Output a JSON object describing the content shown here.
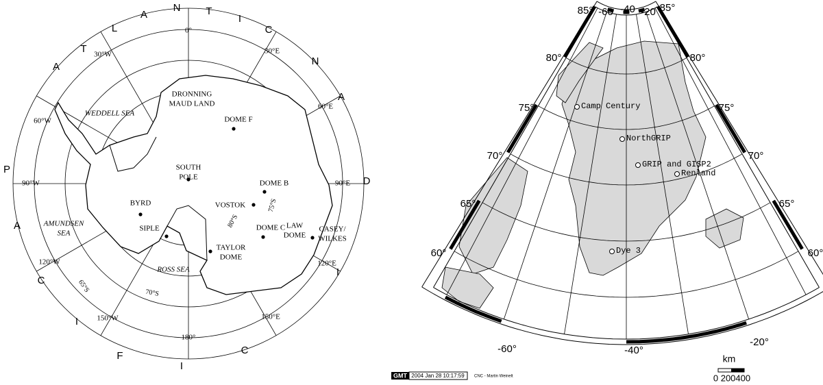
{
  "antarctica_map": {
    "meridian_labels": [
      "0°",
      "30°E",
      "60°E",
      "90°E",
      "120°E",
      "150°E",
      "180°",
      "150°W",
      "120°W",
      "90°W",
      "60°W",
      "30°W"
    ],
    "latitude_labels": [
      "80°S",
      "75°S",
      "70°S",
      "65°S"
    ],
    "ocean_letters": [
      "A",
      "T",
      "L",
      "A",
      "N",
      "T",
      "I",
      "C",
      "N",
      "A",
      "D",
      "I",
      "C",
      "I",
      "F",
      "I",
      "C",
      "A",
      "P"
    ],
    "seas": [
      {
        "lines": [
          "WEDDELL SEA"
        ]
      },
      {
        "lines": [
          "AMUNDSEN",
          "SEA"
        ]
      },
      {
        "lines": [
          "ROSS SEA"
        ]
      }
    ],
    "places": [
      {
        "lines": [
          "DRONNING",
          "MAUD LAND"
        ]
      },
      {
        "lines": [
          "DOME F"
        ]
      },
      {
        "lines": [
          "SOUTH",
          "POLE"
        ]
      },
      {
        "lines": [
          "DOME B"
        ]
      },
      {
        "lines": [
          "VOSTOK"
        ]
      },
      {
        "lines": [
          "BYRD"
        ]
      },
      {
        "lines": [
          "SIPLE"
        ]
      },
      {
        "lines": [
          "DOME C"
        ]
      },
      {
        "lines": [
          "LAW",
          "DOME"
        ]
      },
      {
        "lines": [
          "CASEY/",
          "WILKES"
        ]
      },
      {
        "lines": [
          "TAYLOR",
          "DOME"
        ]
      }
    ]
  },
  "greenland_map": {
    "top_labels": [
      "85°",
      "-60",
      "-40",
      "-20",
      "85°"
    ],
    "left_labels": [
      "80°",
      "75°",
      "70°",
      "65°",
      "60°"
    ],
    "right_labels": [
      "80°",
      "75°",
      "70°",
      "65°",
      "60°"
    ],
    "bottom_labels": [
      "-60°",
      "-40°",
      "-20°"
    ],
    "sites": [
      "Camp Century",
      "NorthGRIP",
      "GRIP and GISP2",
      "Renland",
      "Dye 3"
    ],
    "scale_unit": "km",
    "scale_labels": "0 200400",
    "footer": {
      "logo": "GMT",
      "timestamp": "2004 Jan 28 10:17:59",
      "credit": "CNC - Martin Weinelt"
    }
  }
}
